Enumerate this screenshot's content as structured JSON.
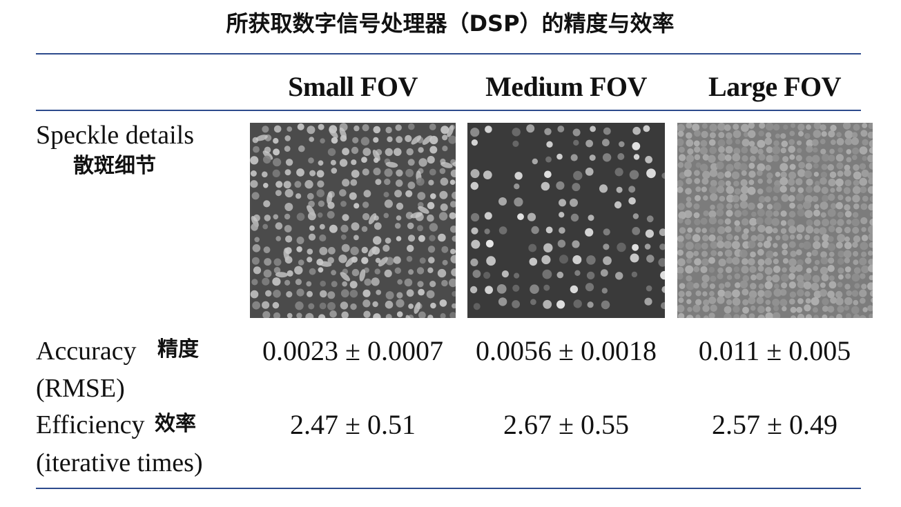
{
  "title": "所获取数字信号处理器（DSP）的精度与效率",
  "table": {
    "columns": [
      "Small FOV",
      "Medium FOV",
      "Large FOV"
    ],
    "rows": [
      {
        "label": [
          "Speckle details",
          "散斑细节"
        ]
      },
      {
        "label": [
          "Accuracy",
          "精度",
          "(RMSE)"
        ],
        "cells": [
          "0.0023 ± 0.0007",
          "0.0056 ± 0.0018",
          "0.011 ± 0.005"
        ]
      },
      {
        "label": [
          "Efficiency",
          "效率",
          "(iterative times)"
        ],
        "cells": [
          "2.47 ± 0.51",
          "2.67 ± 0.55",
          "2.57 ± 0.49"
        ]
      }
    ]
  }
}
